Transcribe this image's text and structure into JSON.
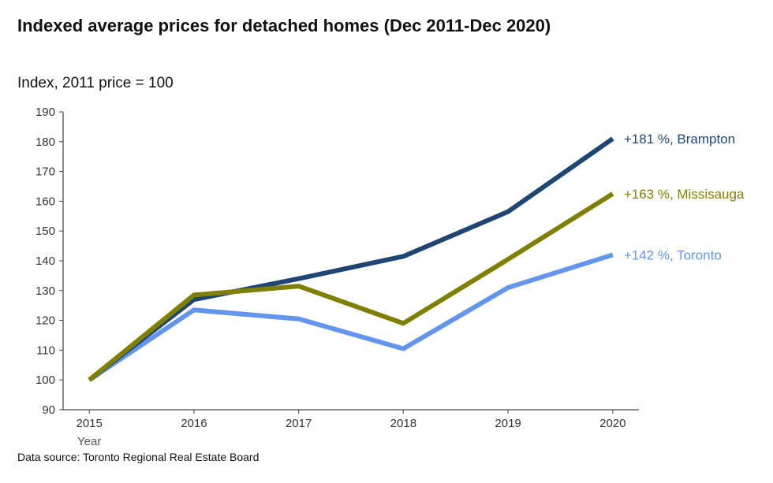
{
  "chart_data": {
    "type": "line",
    "title": "Indexed average prices for detached homes (Dec 2011-Dec 2020)",
    "subtitle": "Index, 2011 price = 100",
    "xlabel": "Year",
    "ylabel": "",
    "source": "Data source: Toronto Regional Real Estate Board",
    "x": [
      2015,
      2016,
      2017,
      2018,
      2019,
      2020
    ],
    "ylim": [
      90,
      190
    ],
    "yticks": [
      90,
      100,
      110,
      120,
      130,
      140,
      150,
      160,
      170,
      180,
      190
    ],
    "xlim": [
      2014.75,
      2020.25
    ],
    "grid": false,
    "legend": "none",
    "series": [
      {
        "name": "Brampton",
        "color": "#1f4673",
        "label": "+181 %, Brampton",
        "values": [
          100,
          127,
          134,
          141.5,
          156.5,
          181
        ]
      },
      {
        "name": "Missisauga",
        "color": "#7f7f00",
        "label": "+163 %, Missisauga",
        "values": [
          100,
          128.5,
          131.5,
          119,
          140.5,
          162.5
        ]
      },
      {
        "name": "Toronto",
        "color": "#6495ed",
        "label": "+142 %, Toronto",
        "values": [
          100,
          123.5,
          120.5,
          110.5,
          131,
          142
        ]
      }
    ]
  }
}
